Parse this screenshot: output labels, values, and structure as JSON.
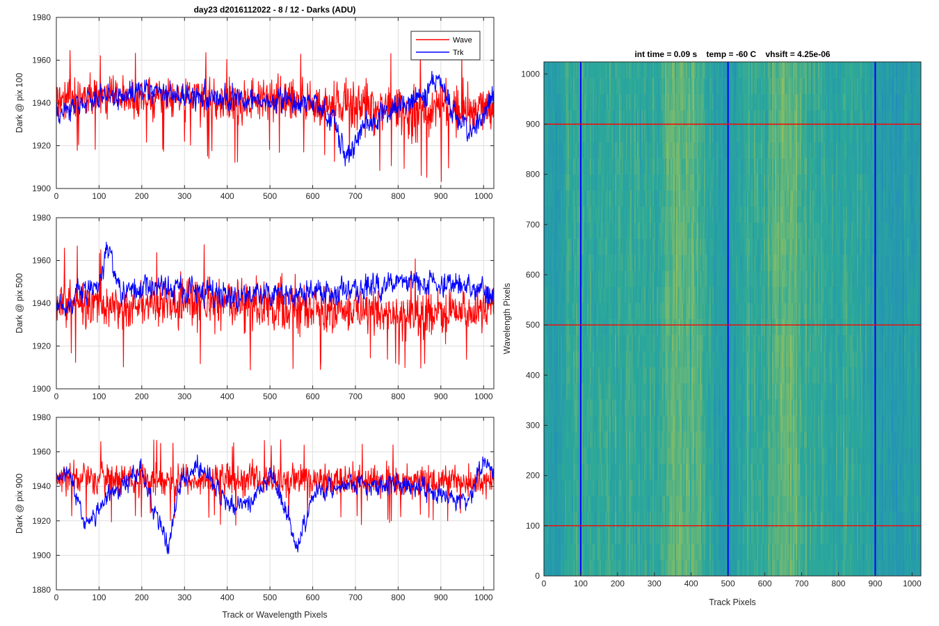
{
  "chart_data": [
    {
      "type": "line",
      "title": "day23 d2016112022 - 8 / 12 - Darks (ADU)",
      "xlabel": "",
      "ylabel": "Dark @ pix 100",
      "xlim": [
        0,
        1024
      ],
      "ylim": [
        1900,
        1980
      ],
      "xticks": [
        0,
        100,
        200,
        300,
        400,
        500,
        600,
        700,
        800,
        900,
        1000
      ],
      "yticks": [
        1900,
        1920,
        1940,
        1960,
        1980
      ],
      "grid": true,
      "legend": {
        "placement": "top-right",
        "entries": [
          "Wave",
          "Trk"
        ]
      },
      "series": [
        {
          "name": "Wave",
          "color": "#ff0000",
          "x_range": [
            0,
            1024
          ],
          "mean_level": 1942,
          "noise_pp": 20,
          "approx_envelope": [
            [
              0,
              1924,
              1960
            ],
            [
              100,
              1924,
              1962
            ],
            [
              200,
              1924,
              1958
            ],
            [
              300,
              1922,
              1965
            ],
            [
              400,
              1920,
              1960
            ],
            [
              500,
              1920,
              1965
            ],
            [
              600,
              1918,
              1960
            ],
            [
              700,
              1918,
              1960
            ],
            [
              800,
              1910,
              1962
            ],
            [
              900,
              1910,
              1962
            ],
            [
              1024,
              1918,
              1958
            ]
          ]
        },
        {
          "name": "Trk",
          "color": "#0000ff",
          "x_range": [
            0,
            1024
          ],
          "approx_trend": [
            [
              0,
              1935
            ],
            [
              60,
              1940
            ],
            [
              120,
              1944
            ],
            [
              200,
              1946
            ],
            [
              300,
              1943
            ],
            [
              400,
              1942
            ],
            [
              520,
              1941
            ],
            [
              600,
              1940
            ],
            [
              650,
              1932
            ],
            [
              680,
              1913
            ],
            [
              720,
              1930
            ],
            [
              780,
              1936
            ],
            [
              860,
              1944
            ],
            [
              900,
              1952
            ],
            [
              940,
              1932
            ],
            [
              970,
              1926
            ],
            [
              1000,
              1935
            ],
            [
              1024,
              1945
            ]
          ]
        }
      ]
    },
    {
      "type": "line",
      "xlabel": "",
      "ylabel": "Dark @ pix 500",
      "xlim": [
        0,
        1024
      ],
      "ylim": [
        1900,
        1980
      ],
      "xticks": [
        0,
        100,
        200,
        300,
        400,
        500,
        600,
        700,
        800,
        900,
        1000
      ],
      "yticks": [
        1900,
        1920,
        1940,
        1960,
        1980
      ],
      "grid": true,
      "series": [
        {
          "name": "Wave",
          "color": "#ff0000",
          "x_range": [
            0,
            1024
          ],
          "mean_level": 1940,
          "noise_pp": 22,
          "approx_envelope": [
            [
              0,
              1920,
              1960
            ],
            [
              100,
              1918,
              1962
            ],
            [
              200,
              1918,
              1960
            ],
            [
              300,
              1918,
              1962
            ],
            [
              400,
              1918,
              1962
            ],
            [
              500,
              1915,
              1962
            ],
            [
              600,
              1915,
              1960
            ],
            [
              700,
              1915,
              1958
            ],
            [
              800,
              1915,
              1955
            ],
            [
              900,
              1915,
              1955
            ],
            [
              1024,
              1920,
              1955
            ]
          ]
        },
        {
          "name": "Trk",
          "color": "#0000ff",
          "x_range": [
            0,
            1024
          ],
          "approx_trend": [
            [
              0,
              1935
            ],
            [
              50,
              1945
            ],
            [
              100,
              1950
            ],
            [
              120,
              1966
            ],
            [
              150,
              1945
            ],
            [
              200,
              1948
            ],
            [
              300,
              1946
            ],
            [
              400,
              1944
            ],
            [
              500,
              1944
            ],
            [
              600,
              1945
            ],
            [
              700,
              1946
            ],
            [
              800,
              1950
            ],
            [
              900,
              1950
            ],
            [
              1024,
              1944
            ]
          ]
        }
      ]
    },
    {
      "type": "line",
      "xlabel": "Track or Wavelength Pixels",
      "ylabel": "Dark @ pix 900",
      "xlim": [
        0,
        1024
      ],
      "ylim": [
        1880,
        1980
      ],
      "xticks": [
        0,
        100,
        200,
        300,
        400,
        500,
        600,
        700,
        800,
        900,
        1000
      ],
      "yticks": [
        1880,
        1900,
        1920,
        1940,
        1960,
        1980
      ],
      "grid": true,
      "series": [
        {
          "name": "Wave",
          "color": "#ff0000",
          "x_range": [
            0,
            1024
          ],
          "mean_level": 1944,
          "noise_pp": 18,
          "approx_envelope": [
            [
              0,
              1925,
              1962
            ],
            [
              100,
              1925,
              1965
            ],
            [
              200,
              1925,
              1962
            ],
            [
              300,
              1925,
              1962
            ],
            [
              400,
              1925,
              1962
            ],
            [
              500,
              1925,
              1962
            ],
            [
              600,
              1925,
              1962
            ],
            [
              700,
              1925,
              1962
            ],
            [
              800,
              1925,
              1960
            ],
            [
              900,
              1925,
              1960
            ],
            [
              1024,
              1925,
              1962
            ]
          ]
        },
        {
          "name": "Trk",
          "color": "#0000ff",
          "x_range": [
            0,
            1024
          ],
          "approx_trend": [
            [
              0,
              1945
            ],
            [
              30,
              1947
            ],
            [
              60,
              1925
            ],
            [
              75,
              1914
            ],
            [
              110,
              1932
            ],
            [
              150,
              1940
            ],
            [
              200,
              1948
            ],
            [
              230,
              1925
            ],
            [
              260,
              1905
            ],
            [
              290,
              1942
            ],
            [
              330,
              1952
            ],
            [
              400,
              1932
            ],
            [
              450,
              1928
            ],
            [
              500,
              1946
            ],
            [
              540,
              1925
            ],
            [
              565,
              1903
            ],
            [
              600,
              1935
            ],
            [
              650,
              1940
            ],
            [
              700,
              1942
            ],
            [
              800,
              1940
            ],
            [
              900,
              1936
            ],
            [
              960,
              1930
            ],
            [
              1000,
              1955
            ],
            [
              1024,
              1944
            ]
          ]
        }
      ]
    },
    {
      "type": "heatmap",
      "title": "int time = 0.09 s    temp = -60 C    vhsift = 4.25e-06",
      "xlabel": "Track Pixels",
      "ylabel": "Wavelength Pixels",
      "xlim": [
        0,
        1024
      ],
      "ylim": [
        0,
        1024
      ],
      "xticks": [
        0,
        100,
        200,
        300,
        400,
        500,
        600,
        700,
        800,
        900,
        1000
      ],
      "yticks": [
        0,
        100,
        200,
        300,
        400,
        500,
        600,
        700,
        800,
        900,
        1000
      ],
      "colormap": "parula",
      "colors": {
        "low": "#1f86c5",
        "mid": "#2ba89a",
        "high": "#a9c552"
      },
      "brighter_track_bands": [
        [
          330,
          420
        ],
        [
          620,
          700
        ]
      ],
      "dimmer_track_bands": [
        [
          0,
          40
        ],
        [
          470,
          520
        ],
        [
          860,
          1024
        ]
      ],
      "overlay_lines": {
        "vertical": {
          "x": [
            100,
            500,
            900
          ],
          "color": "#0000ff"
        },
        "horizontal": {
          "y": [
            100,
            500,
            900
          ],
          "color": "#ff0000"
        }
      }
    }
  ]
}
